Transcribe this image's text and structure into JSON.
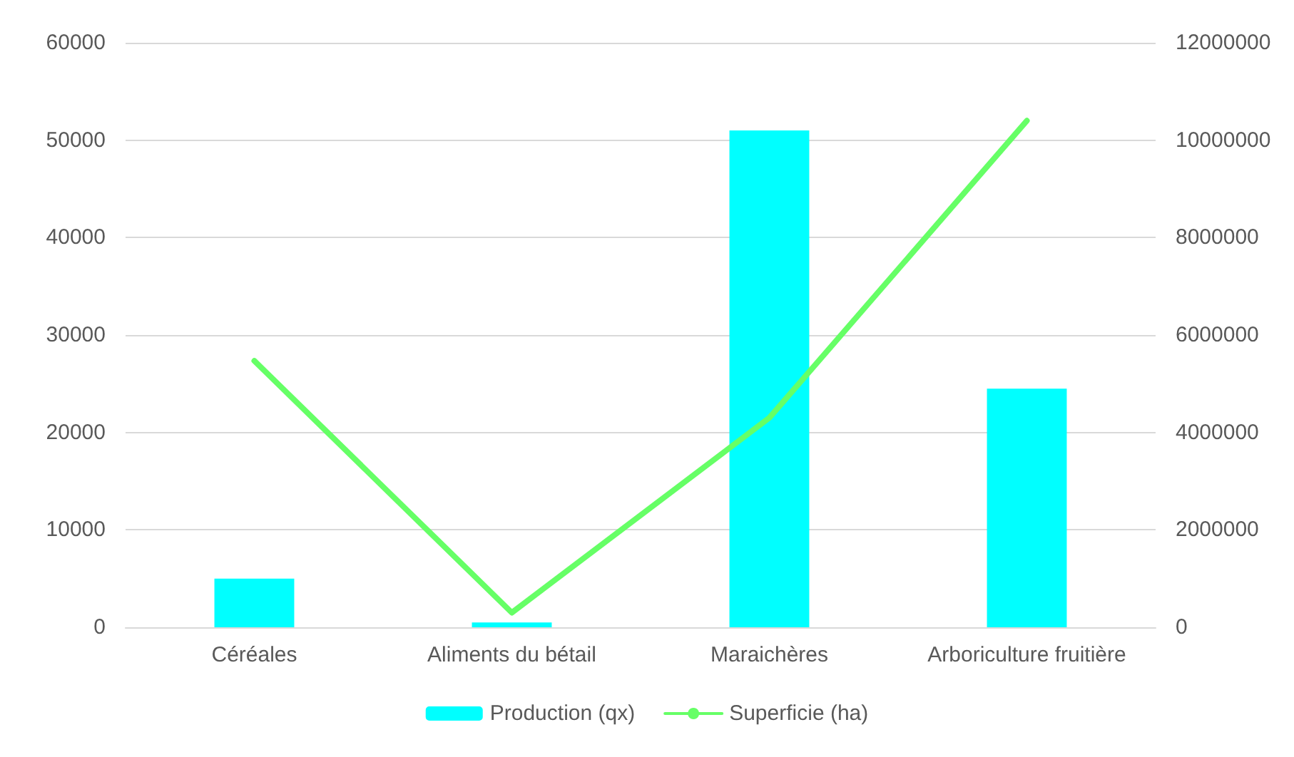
{
  "chart_data": {
    "type": "bar",
    "categories": [
      "Céréales",
      "Aliments du bétail",
      "Maraichères",
      "Arboriculture fruitière"
    ],
    "series": [
      {
        "name": "Production (qx)",
        "color": "#00ffff",
        "values": [
          5000,
          500,
          51000,
          24500
        ]
      },
      {
        "name": "Superficie (ha)",
        "type": "line",
        "axis": "y2",
        "color": "#66ff66",
        "values": [
          5470000,
          300000,
          4300000,
          10400000
        ]
      }
    ],
    "ylim": [
      0,
      60000
    ],
    "yticks": [
      0,
      10000,
      20000,
      30000,
      40000,
      50000,
      60000
    ],
    "y2lim": [
      0,
      12000000
    ],
    "y2ticks": [
      0,
      2000000,
      4000000,
      6000000,
      8000000,
      10000000,
      12000000
    ],
    "grid": "y",
    "legend": "bottom",
    "marker": "none",
    "line_style": "solid"
  }
}
